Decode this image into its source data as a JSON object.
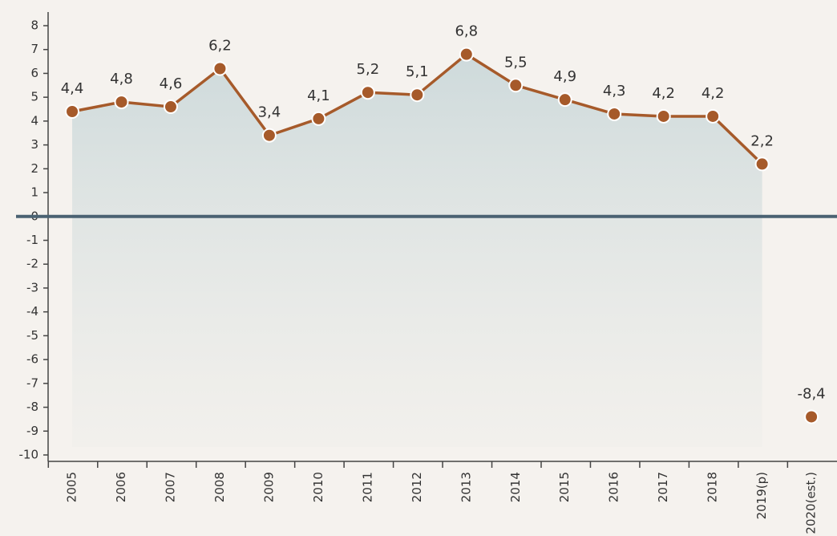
{
  "chart_data": {
    "type": "line",
    "categories": [
      "2005",
      "2006",
      "2007",
      "2008",
      "2009",
      "2010",
      "2011",
      "2012",
      "2013",
      "2014",
      "2015",
      "2016",
      "2017",
      "2018",
      "2019(p)",
      "2020(est.)"
    ],
    "series": [
      {
        "color": "#a65a2a",
        "values": [
          4.4,
          4.8,
          4.6,
          6.2,
          3.4,
          4.1,
          5.2,
          5.1,
          6.8,
          5.5,
          4.9,
          4.3,
          4.2,
          4.2,
          2.2,
          null
        ],
        "value_labels": [
          "4,4",
          "4,8",
          "4,6",
          "6,2",
          "3,4",
          "4,1",
          "5,2",
          "5,1",
          "6,8",
          "5,5",
          "4,9",
          "4,3",
          "4,2",
          "4,2",
          "2,2",
          null
        ]
      },
      {
        "color": "#a65a2a",
        "values": [
          null,
          null,
          null,
          null,
          null,
          null,
          null,
          null,
          null,
          null,
          null,
          null,
          null,
          null,
          null,
          -8.4
        ],
        "value_labels": [
          null,
          null,
          null,
          null,
          null,
          null,
          null,
          null,
          null,
          null,
          null,
          null,
          null,
          null,
          null,
          "-8,4"
        ]
      }
    ],
    "ylim": [
      -10,
      8
    ],
    "yticks": [
      8,
      7,
      6,
      5,
      4,
      3,
      2,
      1,
      0,
      -1,
      -2,
      -3,
      -4,
      -5,
      -6,
      -7,
      -8,
      -9,
      -10
    ]
  }
}
